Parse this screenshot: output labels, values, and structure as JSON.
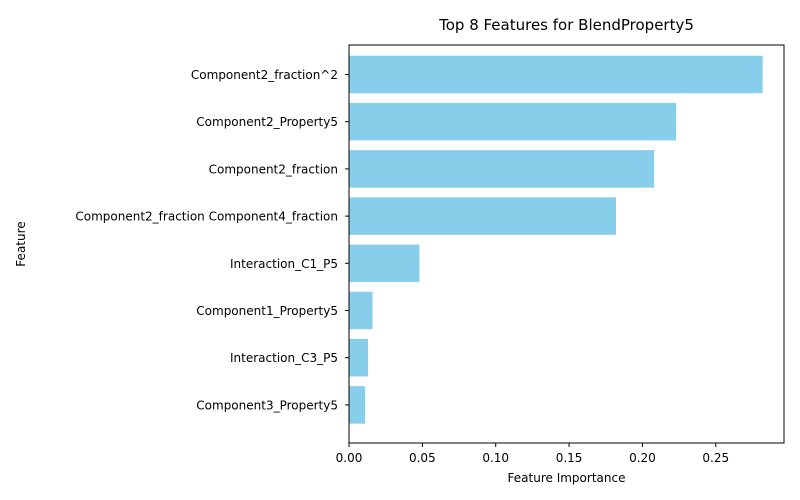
{
  "chart_data": {
    "type": "bar",
    "orientation": "horizontal",
    "title": "Top 8 Features for BlendProperty5",
    "xlabel": "Feature Importance",
    "ylabel": "Feature",
    "categories": [
      "Component2_fraction^2",
      "Component2_Property5",
      "Component2_fraction",
      "Component2_fraction Component4_fraction",
      "Interaction_C1_P5",
      "Component1_Property5",
      "Interaction_C3_P5",
      "Component3_Property5"
    ],
    "values": [
      0.282,
      0.223,
      0.208,
      0.182,
      0.048,
      0.016,
      0.013,
      0.011
    ],
    "xlim": [
      0,
      0.2965
    ],
    "xticks": [
      "0.00",
      "0.05",
      "0.10",
      "0.15",
      "0.20",
      "0.25"
    ],
    "grid": false,
    "bar_color": "#87CEEB"
  }
}
